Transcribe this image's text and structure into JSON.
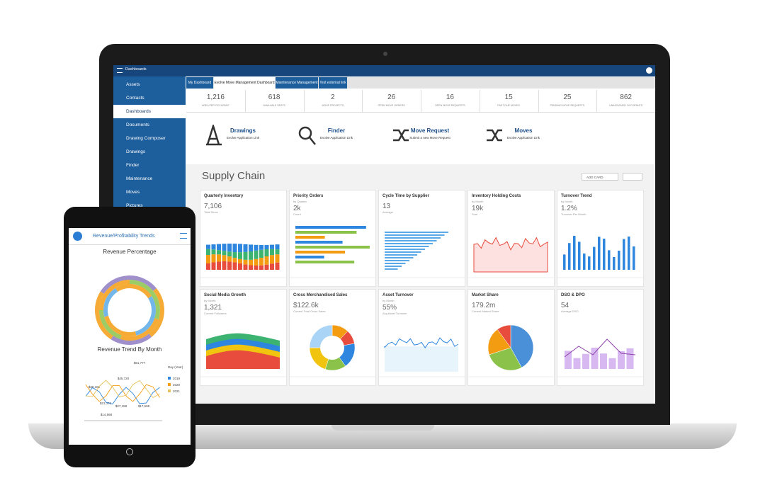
{
  "header": {
    "title": "Dashboards"
  },
  "sidebar": {
    "items": [
      "Assets",
      "Contacts",
      "Dashboards",
      "Documents",
      "Drawing Composer",
      "Drawings",
      "Finder",
      "Maintenance",
      "Moves",
      "Pictures"
    ]
  },
  "tabs": [
    "My Dashboard",
    "Evolve Move Management Dashboard",
    "Maintenance Management",
    "Test external link"
  ],
  "stats": [
    {
      "value": "1,216",
      "label": "AREA PER OCCUPANT"
    },
    {
      "value": "618",
      "label": "AVAILABLE SEATS"
    },
    {
      "value": "2",
      "label": "MOVE PROJECTS"
    },
    {
      "value": "26",
      "label": "OPEN MOVE ORDERS"
    },
    {
      "value": "16",
      "label": "OPEN MOVE REQUESTS"
    },
    {
      "value": "15",
      "label": "PAST DUE MOVES"
    },
    {
      "value": "25",
      "label": "PENDING MOVE REQUESTS"
    },
    {
      "value": "862",
      "label": "UNASSIGNED OCCUPANTS"
    }
  ],
  "links": [
    {
      "title": "Drawings",
      "caption": "Evolve Application Link"
    },
    {
      "title": "Finder",
      "caption": "Evolve Application Link"
    },
    {
      "title": "Move Request",
      "caption": "Submit a new Move Request"
    },
    {
      "title": "Moves",
      "caption": "Evolve Application Link"
    }
  ],
  "section": {
    "title": "Supply Chain",
    "button": "ADD CARD"
  },
  "cards": [
    {
      "title": "Quarterly Inventory",
      "value": "7,106",
      "caption": "Total Stock"
    },
    {
      "title": "Priority Orders",
      "subtitle": "by Quarter",
      "value": "2k",
      "caption": "Count"
    },
    {
      "title": "Cycle Time by Supplier",
      "value": "13",
      "caption": "Average"
    },
    {
      "title": "Inventory Holding Costs",
      "subtitle": "by Month",
      "value": "19k",
      "caption": "Sum"
    },
    {
      "title": "Turnover Trend",
      "subtitle": "by Month",
      "value": "1.2%",
      "caption": "Turnover Per Month"
    },
    {
      "title": "Social Media Growth",
      "subtitle": "by Month",
      "value": "1,321",
      "caption": "Current Followers"
    },
    {
      "title": "Cross Merchandised Sales",
      "value": "$122.6k",
      "caption": "Current Total Cross Sales"
    },
    {
      "title": "Asset Turnover",
      "subtitle": "by Month",
      "value": "55%",
      "caption": "Avg Asset Turnover"
    },
    {
      "title": "Market Share",
      "value": "179.2m",
      "caption": "Current Market Share"
    },
    {
      "title": "DSO & DPO",
      "value": "54",
      "caption": "Average DSO"
    }
  ],
  "phone": {
    "title": "Revenue/Profitability Trends",
    "chart1": "Revenue Percentage",
    "chart2": "Revenue Trend By Month",
    "legend_title": "Day (Year)",
    "legend": [
      "2019",
      "2020",
      "2021"
    ],
    "annotations": [
      "$61,777",
      "$45,720",
      "$36,181",
      "$21,376",
      "$27,158",
      "$17,606",
      "$14,568"
    ]
  }
}
